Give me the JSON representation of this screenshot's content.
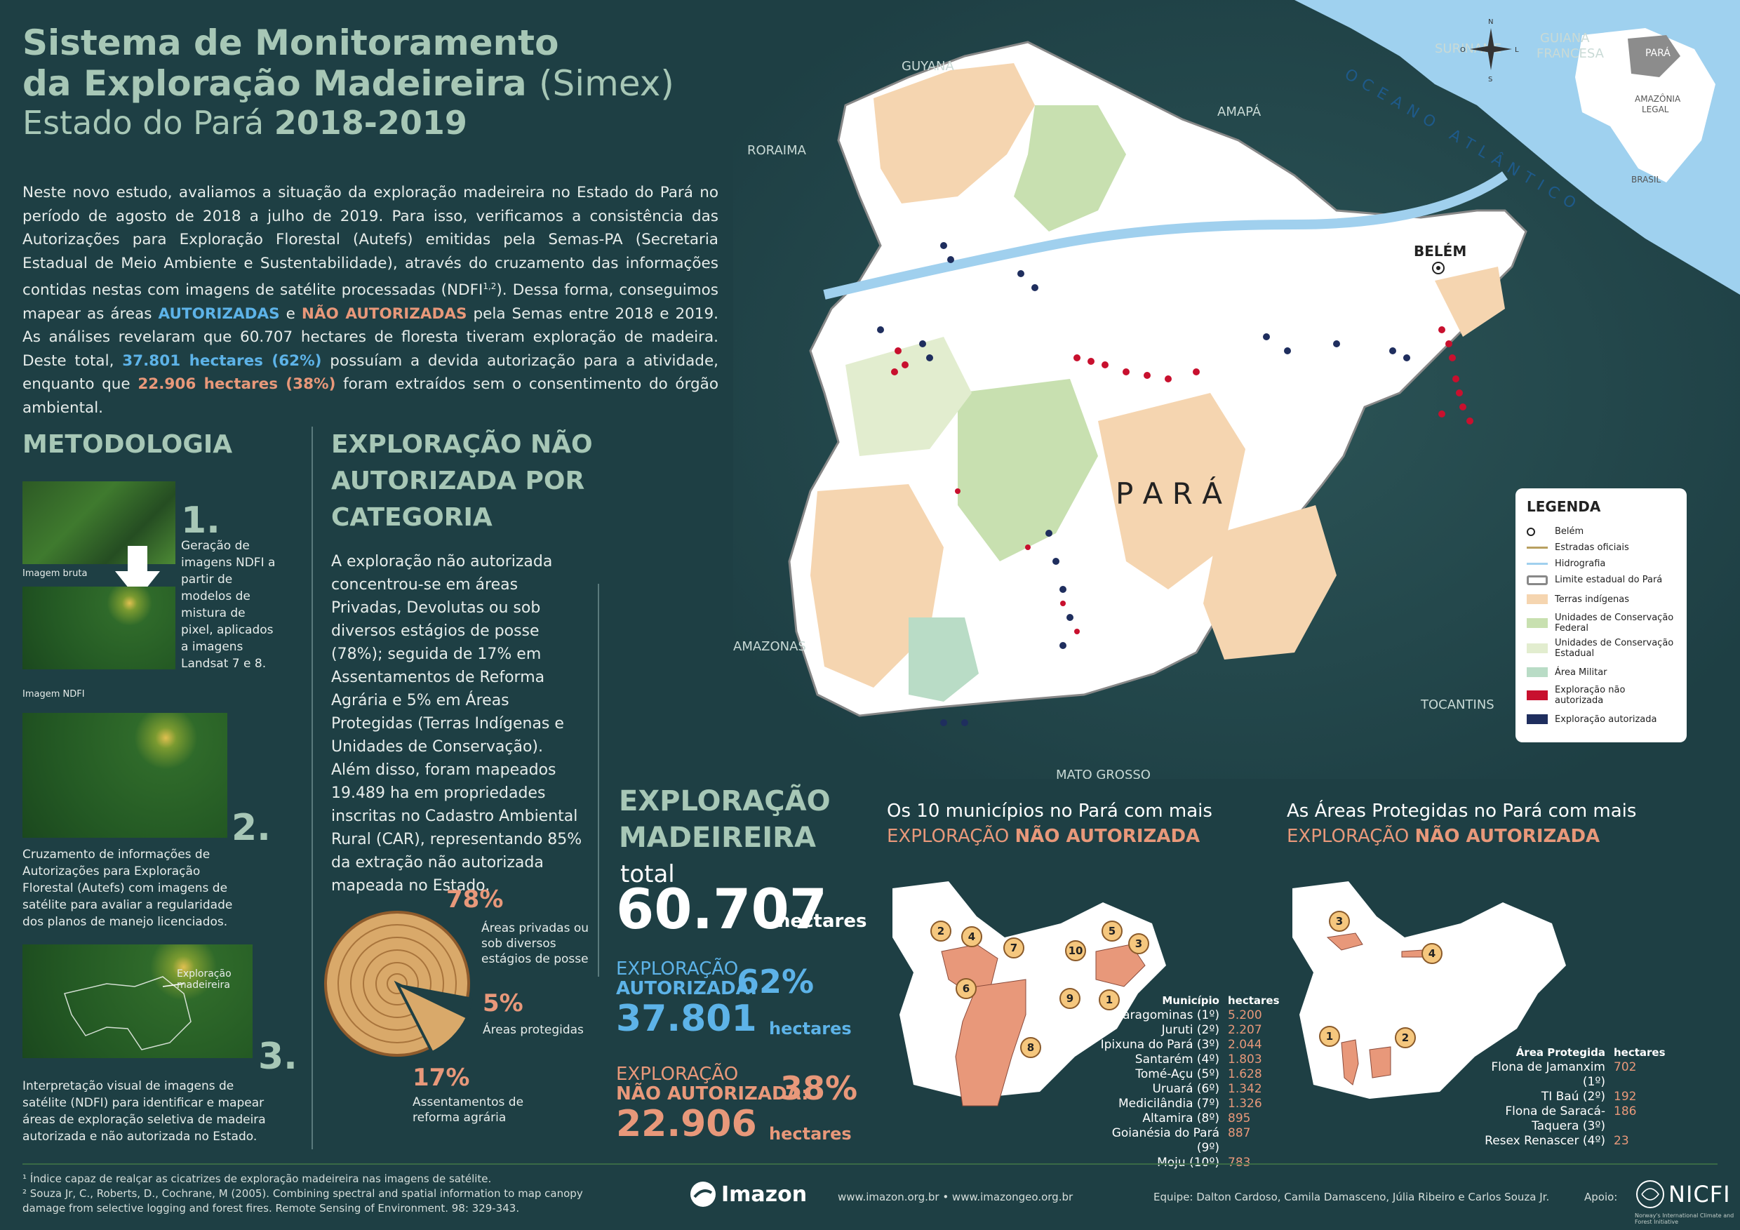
{
  "header": {
    "title_line1": "Sistema de Monitoramento",
    "title_line2_bold": "da Exploração Madeireira",
    "title_line2_light": "(Simex)",
    "subtitle_light": "Estado do Pará",
    "subtitle_bold": "2018-2019"
  },
  "intro": {
    "p1": "Neste novo estudo, avaliamos a situação da exploração madeireira no Estado do Pará no período de agosto de 2018 a julho de 2019. Para isso, verificamos a consistência das Autorizações para Exploração Florestal (Autefs) emitidas pela Semas-PA (Secretaria Estadual de Meio Ambiente e Sustentabilidade), através do cruzamento das informações contidas nestas com imagens de satélite processadas (NDFI",
    "sup": "1,2",
    "p2": "). Dessa forma, conseguimos mapear as áreas ",
    "autorizadas": "AUTORIZADAS",
    "p3": " e ",
    "nao_autorizadas": "NÃO AUTORIZADAS",
    "p4": " pela Semas entre 2018 e 2019. As análises revelaram que 60.707 hectares de floresta tiveram exploração de madeira. Deste total, ",
    "aut_val": "37.801 hectares (62%)",
    "p5": " possuíam a devida autorização para a atividade, enquanto que ",
    "nao_val": "22.906 hectares (38%)",
    "p6": " foram extraídos sem o consentimento do órgão ambiental."
  },
  "metodologia": {
    "heading": "METODOLOGIA",
    "label_bruta": "Imagem bruta",
    "label_ndfi": "Imagem NDFI",
    "step1_num": "1.",
    "step1_text": "Geração de imagens NDFI a partir de modelos de mistura de pixel, aplicados a imagens Landsat 7 e 8.",
    "step2_num": "2.",
    "step2_text": "Cruzamento de informações de Autorizações para Exploração Florestal (Autefs) com imagens de satélite para avaliar a regularidade dos planos de manejo licenciados.",
    "step3_num": "3.",
    "step3_label": "Exploração madeireira",
    "step3_text": "Interpretação visual de imagens de satélite (NDFI) para identificar e mapear áreas de exploração seletiva de madeira autorizada e não autorizada no Estado."
  },
  "categoria": {
    "heading": "EXPLORAÇÃO NÃO AUTORIZADA POR CATEGORIA",
    "text": "A exploração não autorizada concentrou-se em áreas Privadas, Devolutas ou sob diversos estágios de posse (78%); seguida de 17% em Assentamentos de Reforma Agrária e 5% em Áreas Protegidas (Terras Indígenas e Unidades de Conservação). Além disso, foram mapeados 19.489 ha em propriedades inscritas no Cadastro Ambiental Rural (CAR), representando 85% da extração não autorizada mapeada no Estado.",
    "pct1": "78%",
    "lbl1": "Áreas privadas ou sob diversos estágios de posse",
    "pct2": "5%",
    "lbl2": "Áreas protegidas",
    "pct3": "17%",
    "lbl3": "Assentamentos de reforma agrária"
  },
  "map": {
    "state_label": "P A R Á",
    "belem": "BELÉM",
    "countries": [
      "SURINAME",
      "GUIANA FRANCESA",
      "GUYANA",
      "RORAIMA",
      "AMAPÁ",
      "AMAZONAS",
      "MATO GROSSO",
      "TOCANTINS"
    ],
    "ocean": "OCEANO ATLÂNTICO",
    "inset_para": "PARÁ",
    "inset_amazonia": "AMAZÔNIA LEGAL",
    "inset_brasil": "BRASIL",
    "compass": [
      "N",
      "S",
      "L",
      "O"
    ]
  },
  "legend": {
    "title": "LEGENDA",
    "items": [
      "Belém",
      "Estradas oficiais",
      "Hidrografia",
      "Limite estadual do Pará",
      "Terras indígenas",
      "Unidades de Conservação Federal",
      "Unidades de Conservação Estadual",
      "Área Militar",
      "Exploração não autorizada",
      "Exploração autorizada"
    ],
    "colors": {
      "roads": "#b8a060",
      "hydro": "#a0d0ee",
      "indig": "#f5d5b0",
      "ucfed": "#c8e0b0",
      "ucest": "#e2edcf",
      "militar": "#b9dcc6",
      "nao": "#c8102e",
      "aut": "#1f2e5e"
    }
  },
  "totais": {
    "heading": "EXPLORAÇÃO MADEIREIRA",
    "total_label": "total",
    "total_val": "60.707",
    "unit": "hectares",
    "aut_label1": "EXPLORAÇÃO",
    "aut_label2": "AUTORIZADA:",
    "aut_pct": "62%",
    "aut_val": "37.801",
    "nao_label1": "EXPLORAÇÃO",
    "nao_label2": "NÃO AUTORIZADA:",
    "nao_pct": "38%",
    "nao_val": "22.906"
  },
  "municipios": {
    "h1": "Os 10 municípios no Pará com mais",
    "h2a": "EXPLORAÇÃO ",
    "h2b": "NÃO AUTORIZADA",
    "col1": "Município",
    "col2": "hectares",
    "rows": [
      {
        "name": "Paragominas (1º)",
        "val": "5.200"
      },
      {
        "name": "Juruti (2º)",
        "val": "2.207"
      },
      {
        "name": "Ipixuna do Pará (3º)",
        "val": "2.044"
      },
      {
        "name": "Santarém (4º)",
        "val": "1.803"
      },
      {
        "name": "Tomé-Açu (5º)",
        "val": "1.628"
      },
      {
        "name": "Uruará (6º)",
        "val": "1.342"
      },
      {
        "name": "Medicilândia (7º)",
        "val": "1.326"
      },
      {
        "name": "Altamira (8º)",
        "val": "895"
      },
      {
        "name": "Goianésia do Pará (9º)",
        "val": "887"
      },
      {
        "name": "Moju (10º)",
        "val": "783"
      }
    ],
    "badges": [
      "1",
      "2",
      "3",
      "4",
      "5",
      "6",
      "7",
      "8",
      "9",
      "10"
    ]
  },
  "areas_protegidas": {
    "h1": "As Áreas Protegidas no Pará com mais",
    "h2a": "EXPLORAÇÃO ",
    "h2b": "NÃO AUTORIZADA",
    "col1": "Área Protegida",
    "col2": "hectares",
    "rows": [
      {
        "name": "Flona de Jamanxim (1º)",
        "val": "702"
      },
      {
        "name": "TI Baú (2º)",
        "val": "192"
      },
      {
        "name": "Flona de Saracá-Taquera (3º)",
        "val": "186"
      },
      {
        "name": "Resex Renascer (4º)",
        "val": "23"
      }
    ],
    "badges": [
      "1",
      "2",
      "3",
      "4"
    ]
  },
  "footer": {
    "note1": "¹ Índice capaz de realçar as cicatrizes de exploração madeireira nas imagens de satélite.",
    "note2": "² Souza Jr, C., Roberts, D., Cochrane, M (2005). Combining spectral and spatial information to map canopy damage from selective logging and forest fires. Remote Sensing of Environment. 98: 329-343.",
    "logo": "Imazon",
    "urls": "www.imazon.org.br • www.imazongeo.org.br",
    "equipe": "Equipe: Dalton Cardoso, Camila Damasceno, Júlia Ribeiro e Carlos Souza Jr.",
    "apoio": "Apoio:",
    "nicfi": "NICFI",
    "nicfi_sub": "Norway's International Climate and Forest Initiative"
  }
}
